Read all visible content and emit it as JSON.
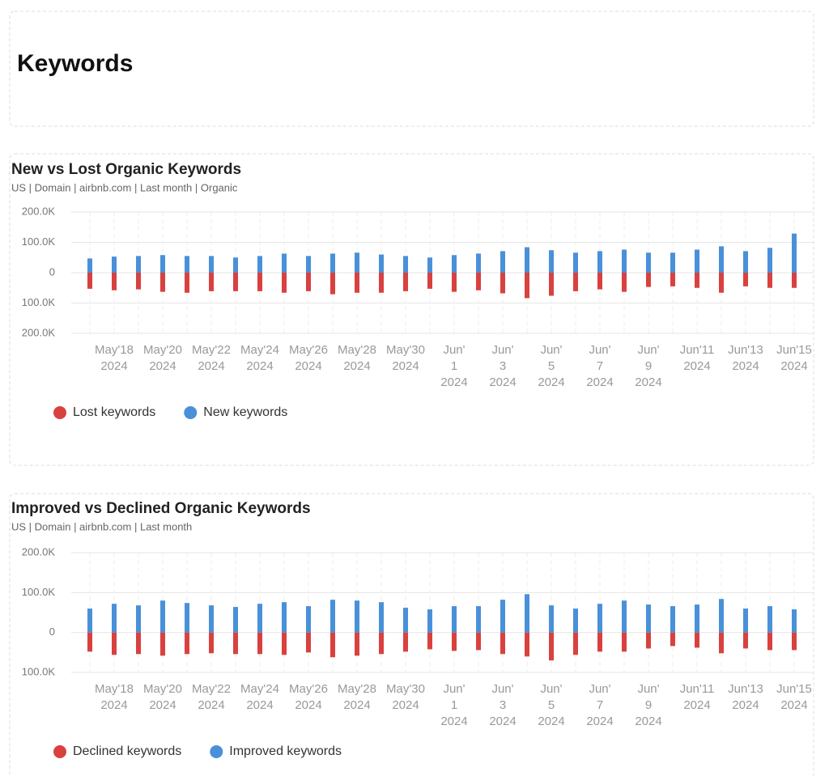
{
  "header": {
    "title": "Keywords"
  },
  "chart_data": [
    {
      "type": "bar",
      "title": "New vs Lost Organic Keywords",
      "subtitle": "US | Domain | airbnb.com | Last month | Organic",
      "categories": [
        null,
        "May'18 2024",
        null,
        "May'20 2024",
        null,
        "May'22 2024",
        null,
        "May'24 2024",
        null,
        "May'26 2024",
        null,
        "May'28 2024",
        null,
        "May'30 2024",
        null,
        "Jun' 1 2024",
        null,
        "Jun' 3 2024",
        null,
        "Jun' 5 2024",
        null,
        "Jun' 7 2024",
        null,
        "Jun' 9 2024",
        null,
        "Jun'11 2024",
        null,
        "Jun'13 2024",
        null,
        "Jun'15 2024"
      ],
      "series": [
        {
          "name": "Lost keywords",
          "color": "#d9413e",
          "values": [
            -53000,
            -58000,
            -55000,
            -63000,
            -66000,
            -61000,
            -61000,
            -61000,
            -66000,
            -61000,
            -71000,
            -66000,
            -66000,
            -61000,
            -53000,
            -63000,
            -58000,
            -68000,
            -84000,
            -76000,
            -61000,
            -55000,
            -63000,
            -47000,
            -45000,
            -50000,
            -66000,
            -45000,
            -50000,
            -50000
          ]
        },
        {
          "name": "New keywords",
          "color": "#4a90d9",
          "values": [
            47000,
            53000,
            55000,
            58000,
            55000,
            55000,
            50000,
            55000,
            63000,
            55000,
            63000,
            66000,
            60000,
            55000,
            50000,
            58000,
            63000,
            71000,
            84000,
            74000,
            66000,
            71000,
            76000,
            66000,
            66000,
            76000,
            87000,
            71000,
            82000,
            129000
          ]
        }
      ],
      "ylim": [
        -200000,
        200000
      ],
      "yticks": [
        {
          "value": 200000,
          "label": "200.0K"
        },
        {
          "value": 100000,
          "label": "100.0K"
        },
        0,
        {
          "value": -100000,
          "label": "100.0K"
        },
        {
          "value": -200000,
          "label": "200.0K"
        }
      ],
      "grid": true,
      "legend": "bottom-left"
    },
    {
      "type": "bar",
      "title": "Improved vs Declined Organic Keywords",
      "subtitle": "US | Domain | airbnb.com | Last month",
      "categories": [
        null,
        "May'18 2024",
        null,
        "May'20 2024",
        null,
        "May'22 2024",
        null,
        "May'24 2024",
        null,
        "May'26 2024",
        null,
        "May'28 2024",
        null,
        "May'30 2024",
        null,
        "Jun' 1 2024",
        null,
        "Jun' 3 2024",
        null,
        "Jun' 5 2024",
        null,
        "Jun' 7 2024",
        null,
        "Jun' 9 2024",
        null,
        "Jun'11 2024",
        null,
        "Jun'13 2024",
        null,
        "Jun'15 2024"
      ],
      "series": [
        {
          "name": "Declined keywords",
          "color": "#d9413e",
          "values": [
            -48000,
            -56000,
            -54000,
            -58000,
            -54000,
            -52000,
            -54000,
            -54000,
            -56000,
            -50000,
            -62000,
            -58000,
            -54000,
            -48000,
            -42000,
            -46000,
            -44000,
            -54000,
            -60000,
            -70000,
            -56000,
            -48000,
            -48000,
            -40000,
            -34000,
            -38000,
            -52000,
            -40000,
            -44000,
            -44000
          ]
        },
        {
          "name": "Improved keywords",
          "color": "#4a90d9",
          "values": [
            60000,
            72000,
            68000,
            80000,
            74000,
            68000,
            64000,
            72000,
            76000,
            66000,
            82000,
            80000,
            76000,
            62000,
            58000,
            66000,
            66000,
            82000,
            96000,
            68000,
            60000,
            72000,
            80000,
            70000,
            66000,
            70000,
            84000,
            60000,
            66000,
            58000
          ]
        }
      ],
      "ylim": [
        -100000,
        200000
      ],
      "yticks": [
        {
          "value": 200000,
          "label": "200.0K"
        },
        {
          "value": 100000,
          "label": "100.0K"
        },
        0,
        {
          "value": -100000,
          "label": "100.0K"
        }
      ],
      "grid": true,
      "legend": "bottom-left"
    }
  ]
}
